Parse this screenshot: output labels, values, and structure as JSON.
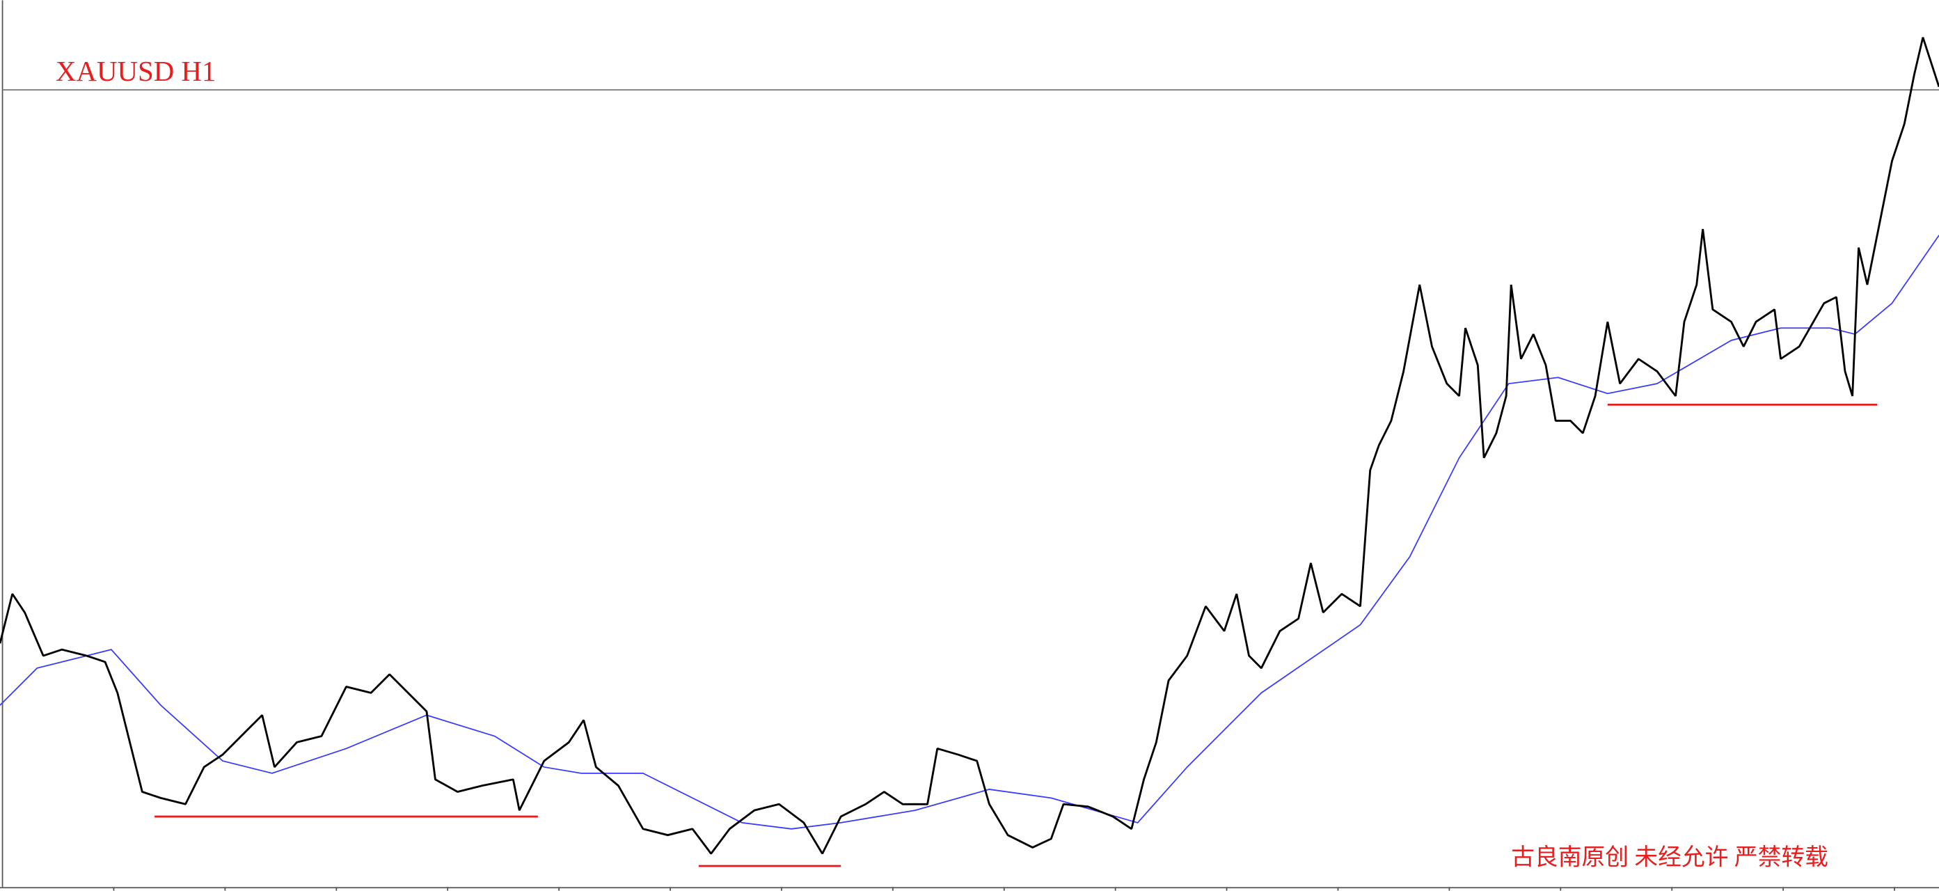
{
  "header": {
    "title": "XAUUSD H1"
  },
  "watermark": "古良南原创 未经允许 严禁转载"
}
